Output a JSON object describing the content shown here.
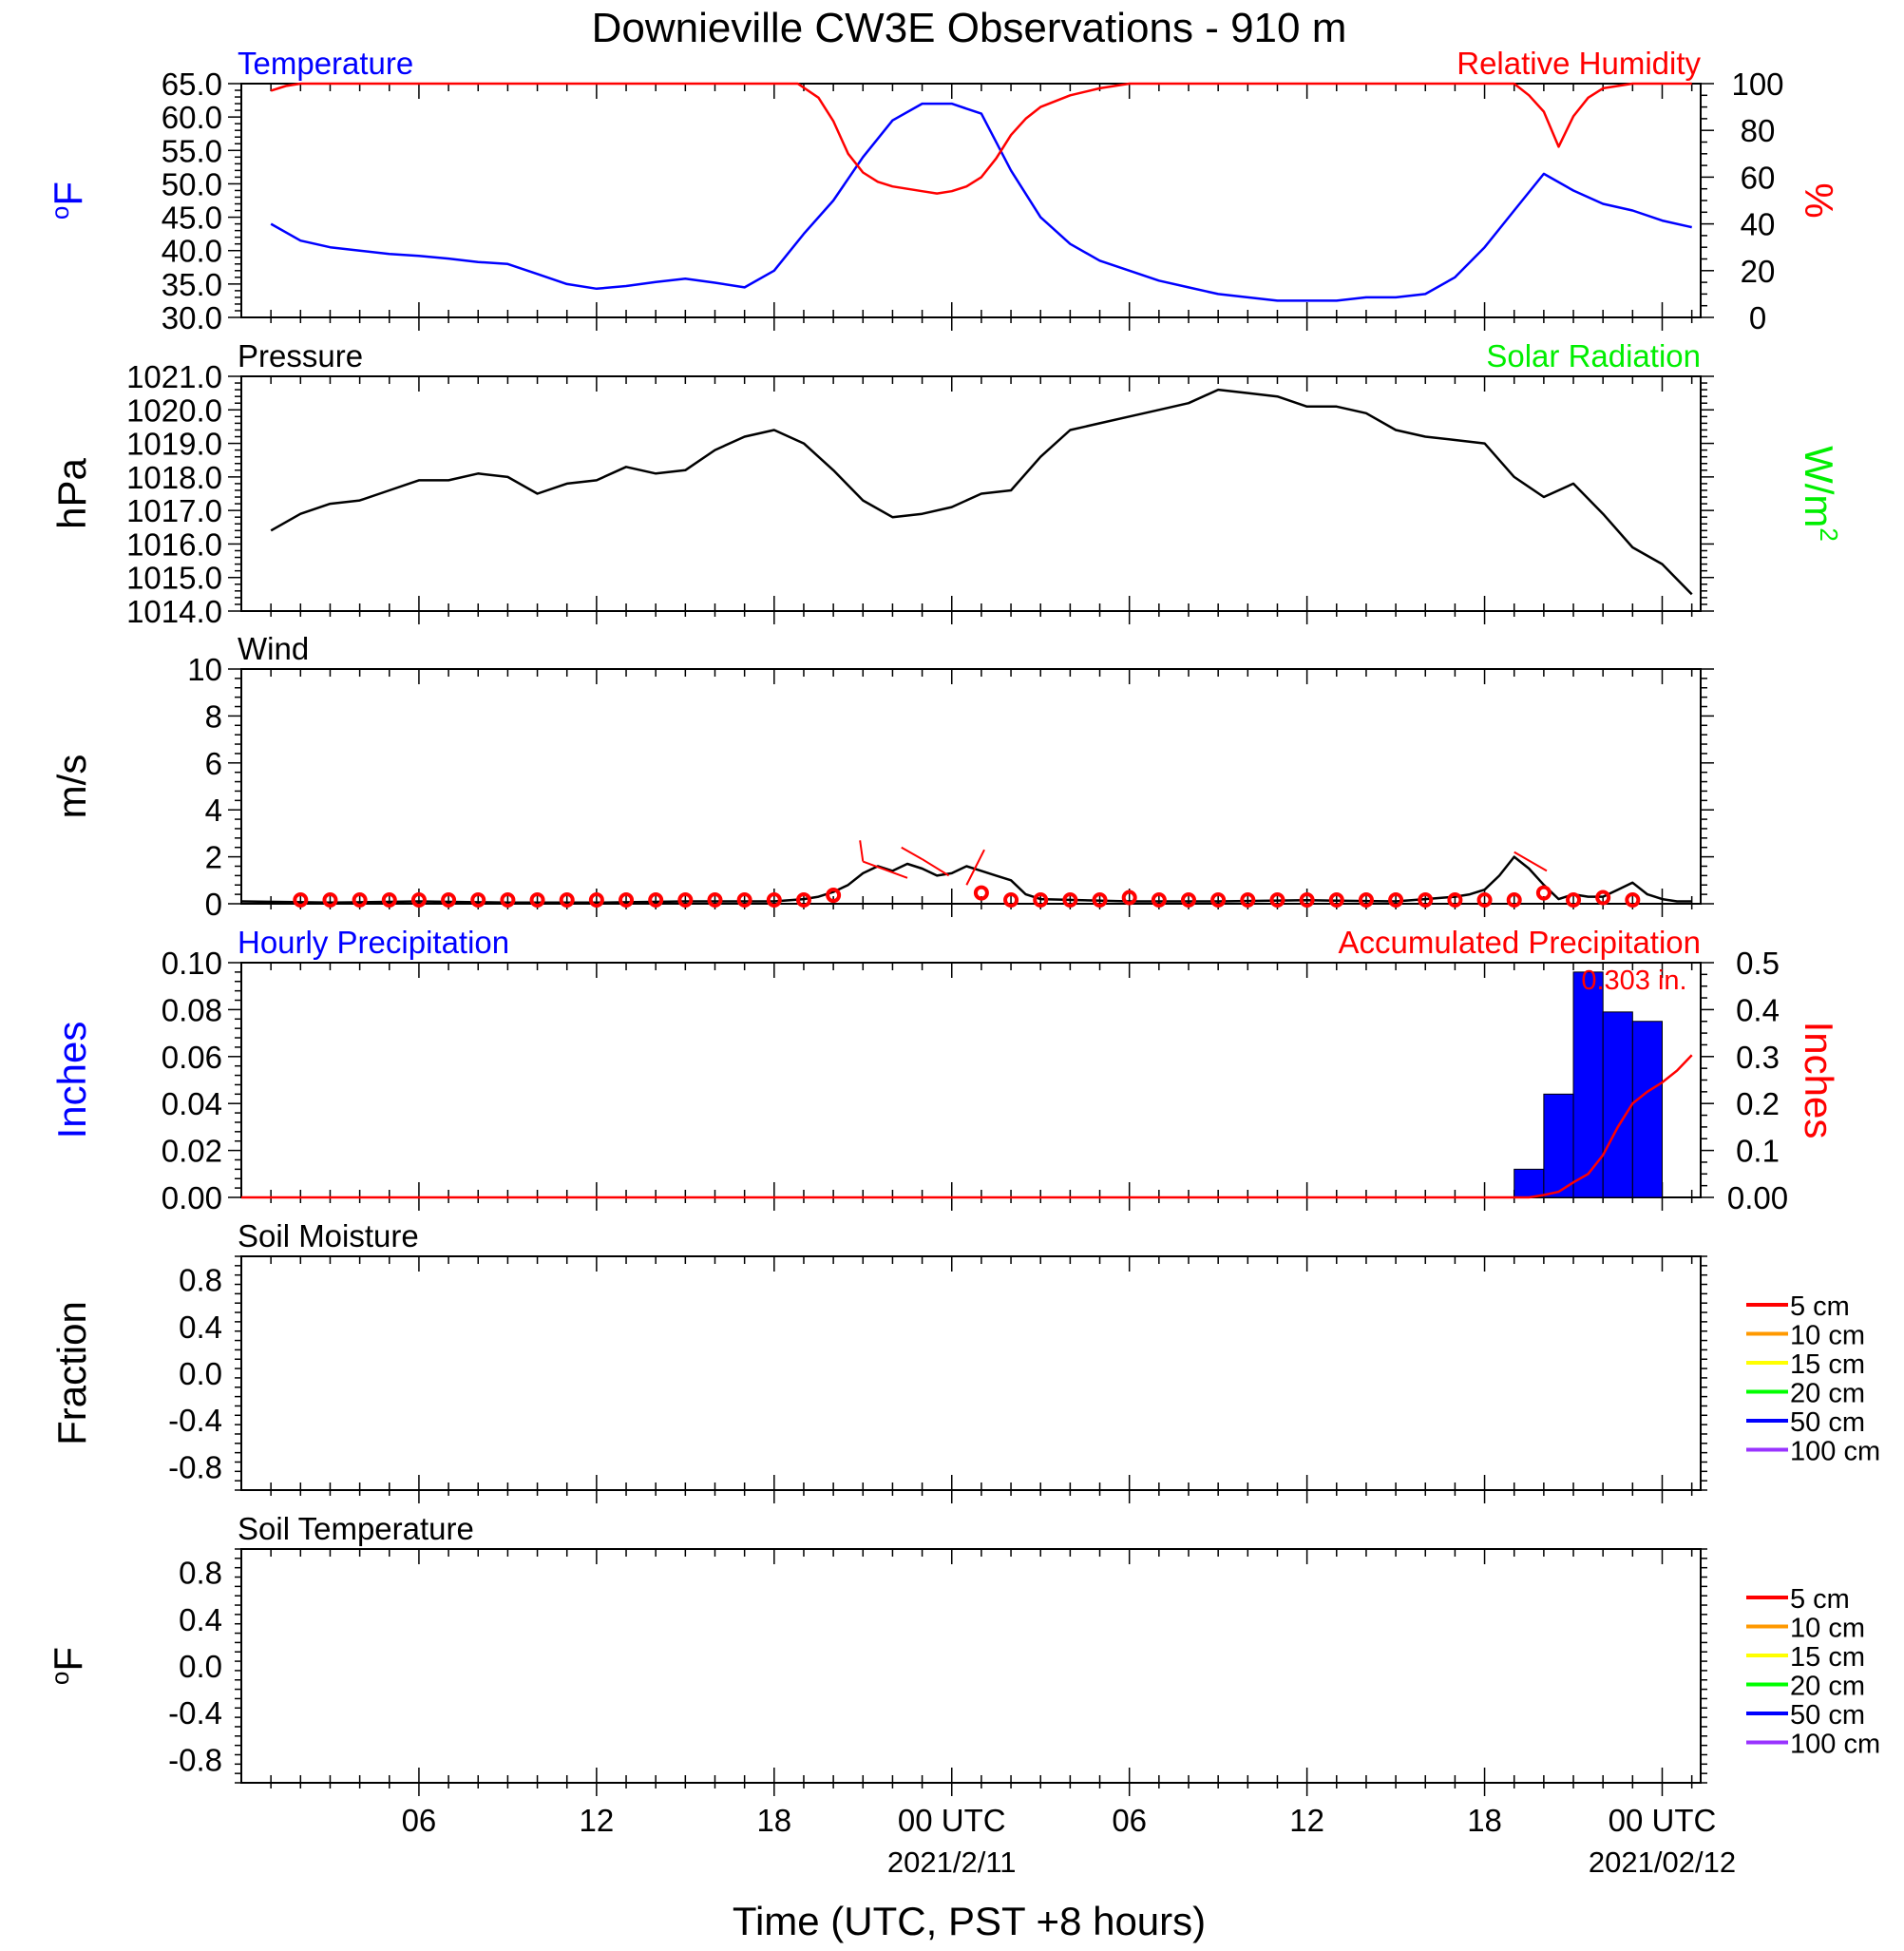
{
  "title": "Downieville CW3E Observations - 910 m",
  "xlabel": "Time (UTC, PST +8 hours)",
  "x_ticks": [
    {
      "hour": 6,
      "label": "06",
      "sub": ""
    },
    {
      "hour": 12,
      "label": "12",
      "sub": ""
    },
    {
      "hour": 18,
      "label": "18",
      "sub": ""
    },
    {
      "hour": 24,
      "label": "00 UTC",
      "sub": "2021/2/11"
    },
    {
      "hour": 30,
      "label": "06",
      "sub": ""
    },
    {
      "hour": 36,
      "label": "12",
      "sub": ""
    },
    {
      "hour": 42,
      "label": "18",
      "sub": ""
    },
    {
      "hour": 48,
      "label": "00 UTC",
      "sub": "2021/02/12"
    }
  ],
  "colors": {
    "blue": "#0000ff",
    "red": "#ff0000",
    "green": "#00ee00",
    "black": "#000000"
  },
  "chart_data": [
    {
      "panel": "temperature_rh",
      "type": "line",
      "left_title": "Temperature",
      "right_title": "Relative Humidity",
      "ylabel": "oF",
      "ylabel_right": "%",
      "ylim": [
        30,
        65
      ],
      "ylim_right": [
        0,
        100
      ],
      "y_ticks": [
        "30.0",
        "35.0",
        "40.0",
        "45.0",
        "50.0",
        "55.0",
        "60.0",
        "65.0"
      ],
      "y_ticks_right": [
        "0",
        "20",
        "40",
        "60",
        "80",
        "100"
      ],
      "series": [
        {
          "color": "#0000ff",
          "axis": "left",
          "x": [
            1,
            2,
            3,
            4,
            5,
            6,
            7,
            8,
            9,
            10,
            11,
            12,
            13,
            14,
            15,
            16,
            17,
            18,
            19,
            20,
            21,
            22,
            23,
            24,
            25,
            26,
            27,
            28,
            29,
            30,
            31,
            32,
            33,
            34,
            35,
            36,
            37,
            38,
            39,
            40,
            41,
            42,
            43,
            44,
            45,
            46,
            47,
            48,
            49
          ],
          "values": [
            44.0,
            41.5,
            40.5,
            40.0,
            39.5,
            39.2,
            38.8,
            38.3,
            38.0,
            36.5,
            35.0,
            34.3,
            34.7,
            35.3,
            35.8,
            35.2,
            34.5,
            37.0,
            42.5,
            47.5,
            54.0,
            59.5,
            62.0,
            62.0,
            60.5,
            52.0,
            45.0,
            41.0,
            38.5,
            37.0,
            35.5,
            34.5,
            33.5,
            33.0,
            32.5,
            32.5,
            32.5,
            33.0,
            33.0,
            33.5,
            36.0,
            40.5,
            46.0,
            51.5,
            49.0,
            47.0,
            46.0,
            44.5,
            43.5
          ]
        },
        {
          "color": "#ff0000",
          "axis": "right",
          "x": [
            1,
            1.5,
            2,
            3,
            4,
            5,
            6,
            7,
            8,
            9,
            10,
            11,
            12,
            13,
            14,
            15,
            16,
            17,
            18,
            18.8,
            19.5,
            20,
            20.5,
            21,
            21.5,
            22,
            22.5,
            23,
            23.5,
            24,
            24.5,
            25,
            25.5,
            26,
            26.5,
            27,
            28,
            29,
            30,
            31,
            32,
            33,
            34,
            35,
            36,
            37,
            38,
            39,
            40,
            41,
            42,
            43,
            43.5,
            44,
            44.5,
            45,
            45.5,
            46,
            47,
            48,
            49
          ],
          "values": [
            97,
            99,
            100,
            100,
            100,
            100,
            100,
            100,
            100,
            100,
            100,
            100,
            100,
            100,
            100,
            100,
            100,
            100,
            100,
            100,
            94,
            84,
            70,
            62,
            58,
            56,
            55,
            54,
            53,
            54,
            56,
            60,
            68,
            78,
            85,
            90,
            95,
            98,
            100,
            100,
            100,
            100,
            100,
            100,
            100,
            100,
            100,
            100,
            100,
            100,
            100,
            100,
            95,
            88,
            73,
            86,
            94,
            98,
            100,
            100,
            100
          ]
        }
      ]
    },
    {
      "panel": "pressure",
      "type": "line",
      "left_title": "Pressure",
      "right_title": "Solar Radiation",
      "ylabel": "hPa",
      "ylabel_right": "W/m",
      "ylabel_right_sup": "2",
      "ylim": [
        1014,
        1021
      ],
      "y_ticks": [
        "1014.0",
        "1015.0",
        "1016.0",
        "1017.0",
        "1018.0",
        "1019.0",
        "1020.0",
        "1021.0"
      ],
      "series": [
        {
          "color": "#000000",
          "x": [
            1,
            2,
            3,
            4,
            5,
            6,
            7,
            8,
            9,
            10,
            11,
            12,
            13,
            14,
            15,
            16,
            17,
            18,
            19,
            20,
            21,
            22,
            23,
            24,
            25,
            26,
            27,
            28,
            29,
            30,
            31,
            32,
            33,
            34,
            35,
            36,
            37,
            38,
            39,
            40,
            41,
            42,
            43,
            44,
            45,
            46,
            47,
            48,
            49
          ],
          "values": [
            1016.4,
            1016.9,
            1017.2,
            1017.3,
            1017.6,
            1017.9,
            1017.9,
            1018.1,
            1018.0,
            1017.5,
            1017.8,
            1017.9,
            1018.3,
            1018.1,
            1018.2,
            1018.8,
            1019.2,
            1019.4,
            1019.0,
            1018.2,
            1017.3,
            1016.8,
            1016.9,
            1017.1,
            1017.5,
            1017.6,
            1018.6,
            1019.4,
            1019.6,
            1019.8,
            1020.0,
            1020.2,
            1020.6,
            1020.5,
            1020.4,
            1020.1,
            1020.1,
            1019.9,
            1019.4,
            1019.2,
            1019.1,
            1019.0,
            1018.0,
            1017.4,
            1017.8,
            1016.9,
            1015.9,
            1015.4,
            1014.5
          ]
        }
      ]
    },
    {
      "panel": "wind",
      "type": "line",
      "left_title": "Wind",
      "ylabel": "m/s",
      "ylim": [
        0,
        10
      ],
      "y_ticks": [
        "0",
        "2",
        "4",
        "6",
        "8",
        "10"
      ],
      "series": [
        {
          "color": "#000000",
          "x": [
            0,
            3,
            6,
            9,
            12,
            15,
            18,
            19,
            19.5,
            20,
            20.5,
            21,
            21.5,
            22,
            22.5,
            23,
            23.5,
            24,
            24.5,
            25,
            25.5,
            26,
            26.5,
            27,
            30,
            33,
            36,
            39,
            40,
            41,
            41.5,
            42,
            42.5,
            43,
            43.5,
            44,
            44.5,
            45,
            45.5,
            46,
            46.5,
            47,
            47.5,
            48,
            48.5,
            49
          ],
          "values": [
            0.1,
            0.05,
            0.1,
            0.05,
            0.05,
            0.1,
            0.1,
            0.2,
            0.3,
            0.5,
            0.8,
            1.3,
            1.6,
            1.4,
            1.7,
            1.5,
            1.2,
            1.3,
            1.6,
            1.4,
            1.2,
            1.0,
            0.4,
            0.2,
            0.1,
            0.1,
            0.15,
            0.1,
            0.2,
            0.3,
            0.4,
            0.6,
            1.2,
            2.0,
            1.5,
            0.8,
            0.2,
            0.4,
            0.3,
            0.3,
            0.6,
            0.9,
            0.4,
            0.2,
            0.1,
            0.1
          ]
        }
      ],
      "wind_circles": [
        {
          "x": 2,
          "y": 0.0
        },
        {
          "x": 3,
          "y": 0.0
        },
        {
          "x": 4,
          "y": 0.0
        },
        {
          "x": 5,
          "y": 0.0
        },
        {
          "x": 6,
          "y": 0.0
        },
        {
          "x": 7,
          "y": 0.0
        },
        {
          "x": 8,
          "y": 0.0
        },
        {
          "x": 9,
          "y": 0.0
        },
        {
          "x": 10,
          "y": 0.0
        },
        {
          "x": 11,
          "y": 0.0
        },
        {
          "x": 12,
          "y": 0.0
        },
        {
          "x": 13,
          "y": 0.0
        },
        {
          "x": 14,
          "y": 0.0
        },
        {
          "x": 15,
          "y": 0.0
        },
        {
          "x": 16,
          "y": 0.0
        },
        {
          "x": 17,
          "y": 0.0
        },
        {
          "x": 18,
          "y": 0.0
        },
        {
          "x": 19,
          "y": 0.0
        },
        {
          "x": 20,
          "y": 0.2
        },
        {
          "x": 25,
          "y": 0.3
        },
        {
          "x": 26,
          "y": 0.0
        },
        {
          "x": 27,
          "y": 0.0
        },
        {
          "x": 28,
          "y": 0.0
        },
        {
          "x": 29,
          "y": 0.0
        },
        {
          "x": 30,
          "y": 0.1
        },
        {
          "x": 31,
          "y": 0.0
        },
        {
          "x": 32,
          "y": 0.0
        },
        {
          "x": 33,
          "y": 0.0
        },
        {
          "x": 34,
          "y": 0.0
        },
        {
          "x": 35,
          "y": 0.0
        },
        {
          "x": 36,
          "y": 0.0
        },
        {
          "x": 37,
          "y": 0.0
        },
        {
          "x": 38,
          "y": 0.0
        },
        {
          "x": 39,
          "y": 0.0
        },
        {
          "x": 40,
          "y": 0.0
        },
        {
          "x": 41,
          "y": 0.0
        },
        {
          "x": 42,
          "y": 0.0
        },
        {
          "x": 43,
          "y": 0.0
        },
        {
          "x": 44,
          "y": 0.3
        },
        {
          "x": 45,
          "y": 0.0
        },
        {
          "x": 46,
          "y": 0.1
        },
        {
          "x": 47,
          "y": 0.0
        }
      ],
      "wind_barbs": [
        {
          "x": 21,
          "y": 1.8,
          "x2": 20.9,
          "y2": 2.7
        },
        {
          "x": 21,
          "y": 1.8,
          "x2": 22.5,
          "y2": 1.1
        },
        {
          "x": 23,
          "y": 1.9,
          "x2": 22.3,
          "y2": 2.4
        },
        {
          "x": 23,
          "y": 1.9,
          "x2": 23.9,
          "y2": 1.2
        },
        {
          "x": 24.5,
          "y": 0.8,
          "x2": 25.1,
          "y2": 2.3
        },
        {
          "x": 44.1,
          "y": 1.4,
          "x2": 43.0,
          "y2": 2.2
        }
      ]
    },
    {
      "panel": "precipitation",
      "type": "bar",
      "left_title": "Hourly Precipitation",
      "right_title": "Accumulated Precipitation",
      "annotation": "0.303 in.",
      "ylabel": "Inches",
      "ylabel_right": "Inches",
      "ylim": [
        0,
        0.1
      ],
      "ylim_right": [
        0,
        0.5
      ],
      "y_ticks": [
        "0.00",
        "0.02",
        "0.04",
        "0.06",
        "0.08",
        "0.10"
      ],
      "y_ticks_right": [
        "0.00",
        "0.1",
        "0.2",
        "0.3",
        "0.4",
        "0.5"
      ],
      "bars": [
        {
          "x": 44,
          "value": 0.012
        },
        {
          "x": 45,
          "value": 0.044
        },
        {
          "x": 46,
          "value": 0.096
        },
        {
          "x": 47,
          "value": 0.079
        },
        {
          "x": 48,
          "value": 0.075
        }
      ],
      "accum": {
        "color": "#ff0000",
        "x": [
          0,
          43.5,
          44,
          44.5,
          45,
          45.5,
          46,
          46.5,
          47,
          47.5,
          48,
          48.5,
          49
        ],
        "values": [
          0,
          0,
          0.005,
          0.012,
          0.032,
          0.05,
          0.09,
          0.15,
          0.2,
          0.225,
          0.245,
          0.27,
          0.303
        ]
      }
    },
    {
      "panel": "soil_moisture",
      "type": "line",
      "left_title": "Soil Moisture",
      "ylabel": "Fraction",
      "ylim": [
        -1,
        1
      ],
      "y_ticks": [
        "-0.8",
        "-0.4",
        "0.0",
        "0.4",
        "0.8"
      ],
      "legend": [
        {
          "label": "5 cm",
          "color": "#ff0000"
        },
        {
          "label": "10 cm",
          "color": "#ff9900"
        },
        {
          "label": "15 cm",
          "color": "#ffff00"
        },
        {
          "label": "20 cm",
          "color": "#00ff00"
        },
        {
          "label": "50 cm",
          "color": "#0000ff"
        },
        {
          "label": "100 cm",
          "color": "#9933ff"
        }
      ],
      "series": []
    },
    {
      "panel": "soil_temperature",
      "type": "line",
      "left_title": "Soil Temperature",
      "ylabel": "oF",
      "ylim": [
        -1,
        1
      ],
      "y_ticks": [
        "-0.8",
        "-0.4",
        "0.0",
        "0.4",
        "0.8"
      ],
      "legend": [
        {
          "label": "5 cm",
          "color": "#ff0000"
        },
        {
          "label": "10 cm",
          "color": "#ff9900"
        },
        {
          "label": "15 cm",
          "color": "#ffff00"
        },
        {
          "label": "20 cm",
          "color": "#00ff00"
        },
        {
          "label": "50 cm",
          "color": "#0000ff"
        },
        {
          "label": "100 cm",
          "color": "#9933ff"
        }
      ],
      "series": []
    }
  ]
}
